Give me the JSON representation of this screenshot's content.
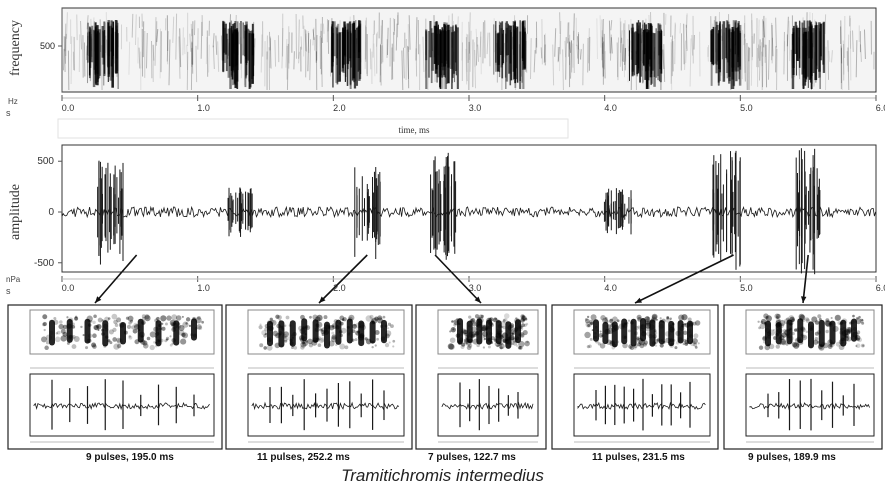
{
  "chart_data": [
    {
      "type": "spectrogram",
      "ylabel": "frequency",
      "y_unit": "Hz",
      "y_ticks": [
        500
      ],
      "x_unit": "s",
      "xlim": [
        0,
        6
      ],
      "x_ticks": [
        "0.0",
        "1.0",
        "2.0",
        "3.0",
        "4.0",
        "5.0",
        "6.0"
      ],
      "xlabel": "time, ms",
      "bursts": [
        0.3,
        1.3,
        2.1,
        2.8,
        3.3,
        4.3,
        4.9,
        5.5
      ]
    },
    {
      "type": "line",
      "ylabel": "amplitude",
      "y_unit": "nPa",
      "y_ticks": [
        500,
        0,
        -500
      ],
      "ylim": [
        -650,
        650
      ],
      "x_unit": "s",
      "xlim": [
        0,
        6
      ],
      "x_ticks": [
        "0.0",
        "1.0",
        "2.0",
        "3.0",
        "4.0",
        "5.0",
        "6.0"
      ],
      "bursts": [
        {
          "t": 0.35,
          "amp": 520
        },
        {
          "t": 1.3,
          "amp": 250
        },
        {
          "t": 2.25,
          "amp": 450
        },
        {
          "t": 2.8,
          "amp": 600
        },
        {
          "t": 4.1,
          "amp": 250
        },
        {
          "t": 4.9,
          "amp": 620
        },
        {
          "t": 5.5,
          "amp": 650
        }
      ]
    }
  ],
  "insets": [
    {
      "caption": "9 pulses, 195.0 ms",
      "pulses": 9
    },
    {
      "caption": "11 pulses, 252.2 ms",
      "pulses": 11
    },
    {
      "caption": "7 pulses, 122.7 ms",
      "pulses": 7
    },
    {
      "caption": "11 pulses, 231.5 ms",
      "pulses": 11
    },
    {
      "caption": "9 pulses, 189.9 ms",
      "pulses": 9
    }
  ],
  "species": "Tramitichromis intermedius",
  "colors": {
    "ink": "#1a1a1a",
    "axis": "#555555",
    "panel_border": "#333333"
  }
}
